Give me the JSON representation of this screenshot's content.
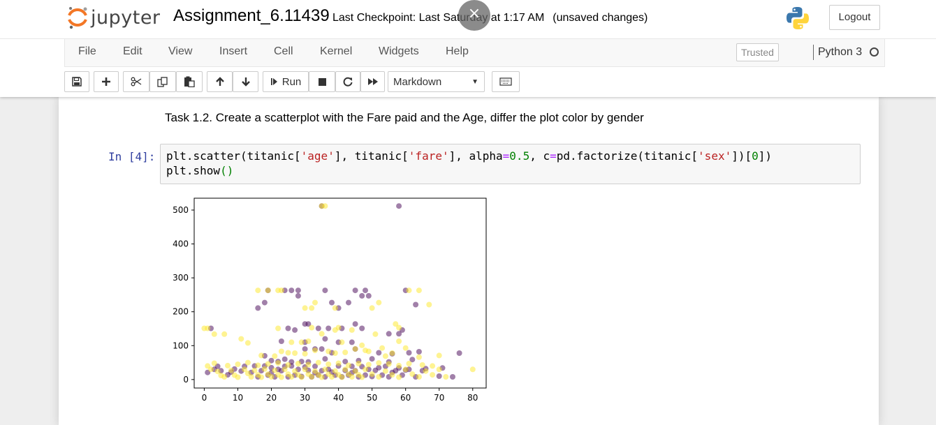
{
  "header": {
    "logo_text": "jupyter",
    "notebook_name": "Assignment_6.11439",
    "checkpoint_text": "Last Checkpoint: Last Saturday at 1:17 AM",
    "unsaved_text": "(unsaved changes)",
    "overlay_close_glyph": "×",
    "logout_label": "Logout",
    "icons": [
      "jupyter-logo-icon",
      "close-icon",
      "python-logo-icon"
    ]
  },
  "menubar": {
    "items": [
      "File",
      "Edit",
      "View",
      "Insert",
      "Cell",
      "Kernel",
      "Widgets",
      "Help"
    ],
    "trusted_label": "Trusted",
    "kernel_name": "Python 3"
  },
  "toolbar": {
    "buttons": [
      "save-icon",
      "plus-icon",
      "cut-icon",
      "copy-icon",
      "paste-icon",
      "arrow-up-icon",
      "arrow-down-icon",
      "run",
      "stop-icon",
      "restart-icon",
      "fast-forward-icon",
      "keyboard-icon"
    ],
    "run_label": "Run",
    "cell_type": "Markdown"
  },
  "cells": {
    "markdown_text": "Task 1.2. Create a scatterplot with the Fare paid and the Age, differ the plot color by gender",
    "prompt": "In [4]:",
    "code": {
      "l1_a": "plt.scatter(titanic[",
      "l1_s1": "'age'",
      "l1_b": "], titanic[",
      "l1_s2": "'fare'",
      "l1_c": "], alpha",
      "l1_eq1": "=",
      "l1_n1": "0.5",
      "l1_d": ", c",
      "l1_eq2": "=",
      "l1_e": "pd.factorize(titanic[",
      "l1_s3": "'sex'",
      "l1_f": "])[",
      "l1_n2": "0",
      "l1_g": "])",
      "l2_a": "plt.show",
      "l2_p": "()"
    }
  },
  "chart_data": {
    "type": "scatter",
    "xlim": [
      -3,
      84
    ],
    "ylim": [
      -25,
      535
    ],
    "x_ticks": [
      0,
      10,
      20,
      30,
      40,
      50,
      60,
      70,
      80
    ],
    "y_ticks": [
      0,
      100,
      200,
      300,
      400,
      500
    ],
    "grid": false,
    "alpha": 0.5,
    "colors": {
      "male": "#440154",
      "female": "#fde725"
    },
    "series": [
      {
        "points": [
          [
            35,
            512
          ],
          [
            58,
            512
          ],
          [
            19,
            263
          ],
          [
            24,
            263
          ],
          [
            26,
            263
          ],
          [
            28,
            263
          ],
          [
            36,
            263
          ],
          [
            45,
            263
          ],
          [
            48,
            263
          ],
          [
            60,
            263
          ],
          [
            28,
            247
          ],
          [
            47,
            247
          ],
          [
            49,
            247
          ],
          [
            18,
            227
          ],
          [
            38,
            227
          ],
          [
            43,
            227
          ],
          [
            40,
            211
          ],
          [
            16,
            211
          ],
          [
            63,
            221
          ],
          [
            25,
            151
          ],
          [
            30,
            164
          ],
          [
            31,
            164
          ],
          [
            34,
            151
          ],
          [
            37,
            151
          ],
          [
            41,
            151
          ],
          [
            45,
            164
          ],
          [
            47,
            151
          ],
          [
            27,
            146
          ],
          [
            2,
            151
          ],
          [
            36,
            120
          ],
          [
            40,
            110
          ],
          [
            44,
            110
          ],
          [
            55,
            135
          ],
          [
            58,
            135
          ],
          [
            59,
            146
          ],
          [
            23,
            113
          ],
          [
            30,
            110
          ],
          [
            30,
            90
          ],
          [
            33,
            90
          ],
          [
            35,
            90
          ],
          [
            38,
            79
          ],
          [
            45,
            90
          ],
          [
            52,
            79
          ],
          [
            64,
            82
          ],
          [
            76,
            78
          ],
          [
            61,
            79
          ],
          [
            56,
            76
          ],
          [
            18,
            70
          ],
          [
            20,
            56
          ],
          [
            22,
            53
          ],
          [
            24,
            60
          ],
          [
            26,
            52
          ],
          [
            29,
            53
          ],
          [
            31,
            52
          ],
          [
            36,
            61
          ],
          [
            42,
            53
          ],
          [
            46,
            56
          ],
          [
            50,
            61
          ],
          [
            55,
            52
          ],
          [
            62,
            59
          ],
          [
            3,
            30
          ],
          [
            5,
            26
          ],
          [
            7,
            14
          ],
          [
            9,
            31
          ],
          [
            11,
            25
          ],
          [
            14,
            21
          ],
          [
            16,
            8
          ],
          [
            17,
            26
          ],
          [
            19,
            13
          ],
          [
            21,
            8
          ],
          [
            22,
            30
          ],
          [
            23,
            26
          ],
          [
            25,
            8
          ],
          [
            27,
            13
          ],
          [
            28,
            30
          ],
          [
            29,
            9
          ],
          [
            31,
            27
          ],
          [
            32,
            8
          ],
          [
            34,
            13
          ],
          [
            35,
            26
          ],
          [
            36,
            8
          ],
          [
            37,
            30
          ],
          [
            39,
            13
          ],
          [
            41,
            8
          ],
          [
            42,
            27
          ],
          [
            43,
            13
          ],
          [
            45,
            26
          ],
          [
            46,
            8
          ],
          [
            48,
            13
          ],
          [
            49,
            30
          ],
          [
            50,
            9
          ],
          [
            51,
            27
          ],
          [
            53,
            13
          ],
          [
            55,
            8
          ],
          [
            57,
            26
          ],
          [
            59,
            13
          ],
          [
            61,
            30
          ],
          [
            63,
            8
          ],
          [
            65,
            26
          ],
          [
            1,
            21
          ],
          [
            4,
            39
          ],
          [
            8,
            22
          ],
          [
            12,
            39
          ],
          [
            15,
            40
          ],
          [
            18,
            40
          ],
          [
            20,
            35
          ],
          [
            24,
            39
          ],
          [
            26,
            40
          ],
          [
            30,
            37
          ],
          [
            33,
            39
          ],
          [
            40,
            40
          ],
          [
            44,
            39
          ],
          [
            47,
            38
          ],
          [
            52,
            35
          ],
          [
            54,
            39
          ],
          [
            58,
            34
          ],
          [
            60,
            28
          ],
          [
            66,
            32
          ],
          [
            70,
            10
          ],
          [
            71,
            34
          ],
          [
            74,
            8
          ],
          [
            20,
            20
          ],
          [
            33,
            20
          ],
          [
            38,
            22
          ],
          [
            44,
            20
          ],
          [
            56,
            21
          ]
        ]
      },
      {
        "points": [
          [
            36,
            512
          ],
          [
            35,
            512
          ],
          [
            16,
            263
          ],
          [
            19,
            263
          ],
          [
            22,
            263
          ],
          [
            23,
            263
          ],
          [
            64,
            263
          ],
          [
            61,
            263
          ],
          [
            52,
            227
          ],
          [
            30,
            211
          ],
          [
            32,
            211
          ],
          [
            39,
            211
          ],
          [
            50,
            211
          ],
          [
            67,
            221
          ],
          [
            33,
            227
          ],
          [
            1,
            151
          ],
          [
            22,
            151
          ],
          [
            32,
            153
          ],
          [
            35,
            135
          ],
          [
            40,
            153
          ],
          [
            44,
            146
          ],
          [
            57,
            164
          ],
          [
            58,
            153
          ],
          [
            3,
            134
          ],
          [
            6,
            134
          ],
          [
            11,
            120
          ],
          [
            13,
            108
          ],
          [
            26,
            110
          ],
          [
            29,
            110
          ],
          [
            39,
            146
          ],
          [
            51,
            134
          ],
          [
            58,
            113
          ],
          [
            31,
            113
          ],
          [
            41,
            110
          ],
          [
            53,
            93
          ],
          [
            60,
            93
          ],
          [
            45,
            90
          ],
          [
            48,
            86
          ],
          [
            17,
            71
          ],
          [
            21,
            69
          ],
          [
            23,
            83
          ],
          [
            25,
            79
          ],
          [
            27,
            78
          ],
          [
            30,
            76
          ],
          [
            33,
            86
          ],
          [
            37,
            83
          ],
          [
            39,
            78
          ],
          [
            42,
            80
          ],
          [
            49,
            83
          ],
          [
            54,
            69
          ],
          [
            56,
            78
          ],
          [
            64,
            66
          ],
          [
            70,
            71
          ],
          [
            2,
            30
          ],
          [
            4,
            24
          ],
          [
            5,
            12
          ],
          [
            6,
            8
          ],
          [
            8,
            27
          ],
          [
            9,
            13
          ],
          [
            10,
            7
          ],
          [
            12,
            30
          ],
          [
            13,
            18
          ],
          [
            14,
            8
          ],
          [
            15,
            27
          ],
          [
            16,
            14
          ],
          [
            17,
            7
          ],
          [
            18,
            31
          ],
          [
            19,
            16
          ],
          [
            20,
            8
          ],
          [
            21,
            27
          ],
          [
            22,
            14
          ],
          [
            23,
            7
          ],
          [
            24,
            30
          ],
          [
            25,
            16
          ],
          [
            26,
            8
          ],
          [
            27,
            25
          ],
          [
            28,
            14
          ],
          [
            29,
            7
          ],
          [
            30,
            30
          ],
          [
            31,
            16
          ],
          [
            32,
            8
          ],
          [
            33,
            25
          ],
          [
            34,
            14
          ],
          [
            35,
            7
          ],
          [
            36,
            30
          ],
          [
            37,
            16
          ],
          [
            38,
            8
          ],
          [
            39,
            25
          ],
          [
            40,
            14
          ],
          [
            41,
            7
          ],
          [
            42,
            30
          ],
          [
            43,
            16
          ],
          [
            44,
            8
          ],
          [
            45,
            25
          ],
          [
            46,
            14
          ],
          [
            47,
            7
          ],
          [
            48,
            30
          ],
          [
            50,
            16
          ],
          [
            52,
            8
          ],
          [
            54,
            25
          ],
          [
            56,
            14
          ],
          [
            58,
            7
          ],
          [
            60,
            30
          ],
          [
            62,
            16
          ],
          [
            64,
            8
          ],
          [
            66,
            25
          ],
          [
            68,
            14
          ],
          [
            1,
            40
          ],
          [
            3,
            48
          ],
          [
            7,
            41
          ],
          [
            10,
            45
          ],
          [
            13,
            50
          ],
          [
            16,
            42
          ],
          [
            19,
            46
          ],
          [
            22,
            49
          ],
          [
            25,
            43
          ],
          [
            28,
            47
          ],
          [
            31,
            44
          ],
          [
            34,
            50
          ],
          [
            37,
            45
          ],
          [
            40,
            48
          ],
          [
            43,
            42
          ],
          [
            46,
            47
          ],
          [
            49,
            44
          ],
          [
            52,
            49
          ],
          [
            55,
            46
          ],
          [
            58,
            41
          ],
          [
            61,
            47
          ],
          [
            65,
            43
          ],
          [
            68,
            40
          ],
          [
            70,
            30
          ],
          [
            72,
            8
          ],
          [
            80,
            30
          ],
          [
            0,
            151
          ],
          [
            47,
            101
          ]
        ]
      }
    ]
  }
}
